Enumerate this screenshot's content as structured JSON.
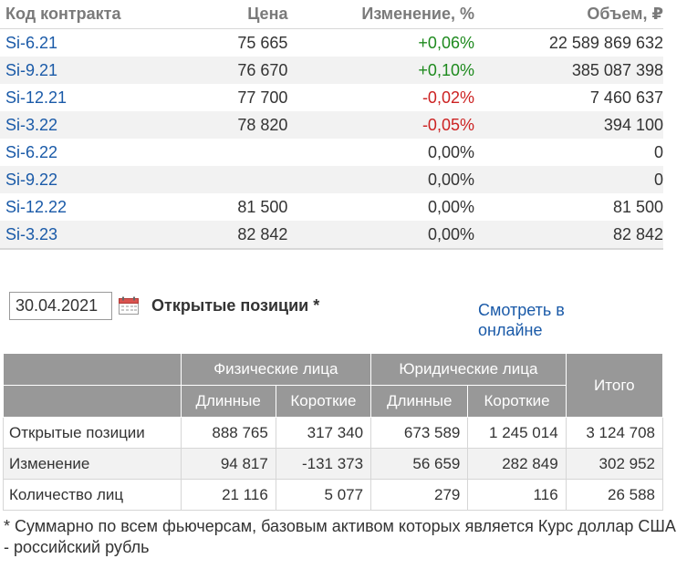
{
  "contracts": {
    "headers": {
      "code": "Код контракта",
      "price": "Цена",
      "change": "Изменение, %",
      "volume": "Объем, ₽"
    },
    "rows": [
      {
        "code": "Si-6.21",
        "price": "75 665",
        "change": "+0,06%",
        "volume": "22 589 869 632",
        "trend": "pos"
      },
      {
        "code": "Si-9.21",
        "price": "76 670",
        "change": "+0,10%",
        "volume": "385 087 398",
        "trend": "pos"
      },
      {
        "code": "Si-12.21",
        "price": "77 700",
        "change": "-0,02%",
        "volume": "7 460 637",
        "trend": "neg"
      },
      {
        "code": "Si-3.22",
        "price": "78 820",
        "change": "-0,05%",
        "volume": "394 100",
        "trend": "neg"
      },
      {
        "code": "Si-6.22",
        "price": "",
        "change": "0,00%",
        "volume": "0",
        "trend": "zero"
      },
      {
        "code": "Si-9.22",
        "price": "",
        "change": "0,00%",
        "volume": "0",
        "trend": "zero"
      },
      {
        "code": "Si-12.22",
        "price": "81 500",
        "change": "0,00%",
        "volume": "81 500",
        "trend": "zero"
      },
      {
        "code": "Si-3.23",
        "price": "82 842",
        "change": "0,00%",
        "volume": "82 842",
        "trend": "zero"
      }
    ]
  },
  "open_positions": {
    "date_value": "30.04.2021",
    "title": "Открытые позиции *",
    "online_link": "Смотреть в онлайне",
    "calendar_icon": "calendar-icon",
    "headers": {
      "individuals": "Физические лица",
      "legal": "Юридические лица",
      "total": "Итого",
      "long": "Длинные",
      "short": "Короткие"
    },
    "rows": [
      {
        "label": "Открытые позиции",
        "ind_long": "888 765",
        "ind_short": "317 340",
        "leg_long": "673 589",
        "leg_short": "1 245 014",
        "total": "3 124 708"
      },
      {
        "label": "Изменение",
        "ind_long": "94 817",
        "ind_short": "-131 373",
        "leg_long": "56 659",
        "leg_short": "282 849",
        "total": "302 952"
      },
      {
        "label": "Количество лиц",
        "ind_long": "21 116",
        "ind_short": "5 077",
        "leg_long": "279",
        "leg_short": "116",
        "total": "26 588"
      }
    ]
  },
  "footnote": "* Суммарно по всем фьючерсам, базовым активом которых является Курс доллар США - российский рубль",
  "colors": {
    "positive": "#1e8a1e",
    "negative": "#cc2222",
    "link": "#1a5aa8",
    "header_bg": "#989898"
  }
}
